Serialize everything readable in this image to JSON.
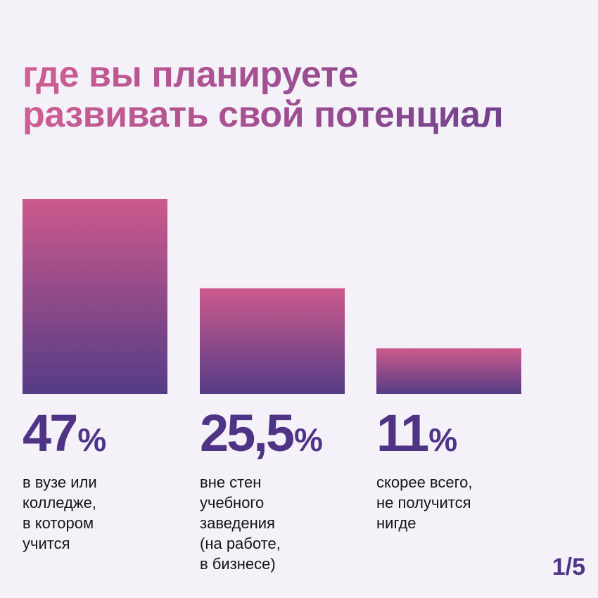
{
  "title": {
    "line1": "где вы планируете",
    "line2": "развивать свой потенциал"
  },
  "chart_data": {
    "type": "bar",
    "title": "где вы планируете развивать свой потенциал",
    "categories": [
      "в вузе или колледже, в котором учится",
      "вне стен учебного заведения (на работе, в бизнесе)",
      "скорее всего, не получится нигде"
    ],
    "values": [
      47,
      25.5,
      11
    ],
    "value_labels": [
      "47",
      "25,5",
      "11"
    ],
    "unit": "%",
    "descriptions": [
      "в вузе или\nколледже,\nв котором\nучится",
      "вне стен\nучебного\nзаведения\n(на работе,\nв бизнесе)",
      "скорее всего,\nне получится\nнигде"
    ],
    "xlabel": "",
    "ylabel": "",
    "ylim": [
      0,
      47
    ],
    "colors": {
      "bar_top": "#cd5a8d",
      "bar_bottom": "#553c86"
    }
  },
  "page_indicator": "1/5"
}
